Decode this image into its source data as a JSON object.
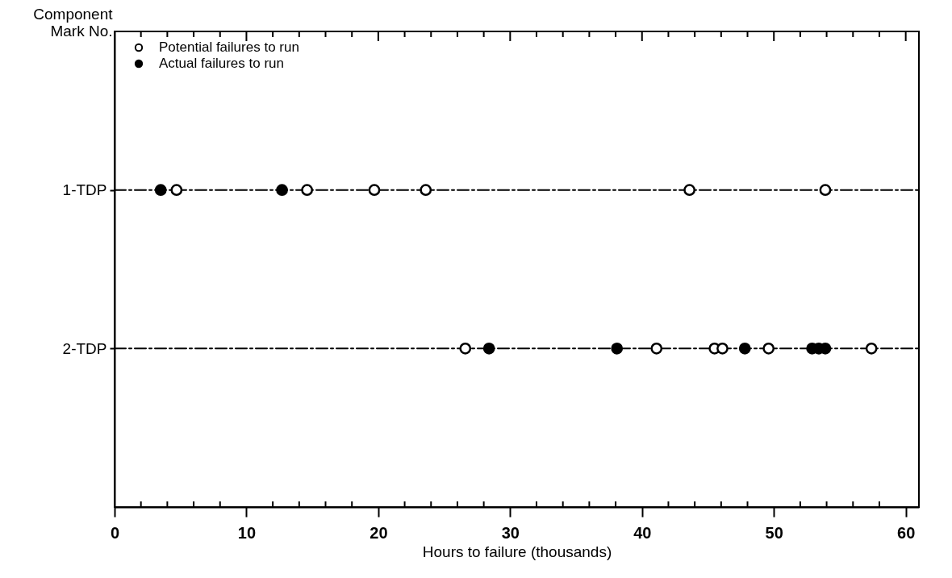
{
  "chart_data": {
    "type": "scatter",
    "xlabel": "Hours to failure (thousands)",
    "ylabel": "Component Mark No.",
    "xlim": [
      0,
      61
    ],
    "xticks": [
      0,
      {
        "value": 2,
        "label": null
      },
      {
        "value": 4,
        "label": null
      },
      {
        "value": 6,
        "label": null
      },
      {
        "value": 8,
        "label": null
      },
      10,
      {
        "value": 12,
        "label": null
      },
      {
        "value": 14,
        "label": null
      },
      {
        "value": 16,
        "label": null
      },
      {
        "value": 18,
        "label": null
      },
      20,
      {
        "value": 22,
        "label": null
      },
      {
        "value": 24,
        "label": null
      },
      {
        "value": 26,
        "label": null
      },
      {
        "value": 28,
        "label": null
      },
      30,
      {
        "value": 32,
        "label": null
      },
      {
        "value": 34,
        "label": null
      },
      {
        "value": 36,
        "label": null
      },
      {
        "value": 38,
        "label": null
      },
      40,
      {
        "value": 42,
        "label": null
      },
      {
        "value": 44,
        "label": null
      },
      {
        "value": 46,
        "label": null
      },
      {
        "value": 48,
        "label": null
      },
      50,
      {
        "value": 52,
        "label": null
      },
      {
        "value": 54,
        "label": null
      },
      {
        "value": 56,
        "label": null
      },
      {
        "value": 58,
        "label": null
      },
      60
    ],
    "ylim": [
      3,
      0
    ],
    "yticks": [
      {
        "value": 1,
        "label": "1-TDP"
      },
      {
        "value": 2,
        "label": "2-TDP"
      }
    ],
    "ref_lines": [
      {
        "axis": "y",
        "value": 1,
        "line_style": "dashed",
        "color": "#000000"
      },
      {
        "axis": "y",
        "value": 2,
        "line_style": "dashed",
        "color": "#000000"
      }
    ],
    "marker": "circle",
    "series": [
      {
        "name": "Potential failures to run",
        "color": "#ffffff",
        "x": [
          4.7,
          14.6,
          19.7,
          23.6,
          43.6,
          53.9,
          26.6,
          41.1,
          45.5,
          46.1,
          49.6,
          57.4
        ],
        "values": [
          1,
          1,
          1,
          1,
          1,
          1,
          2,
          2,
          2,
          2,
          2,
          2
        ]
      },
      {
        "name": "Actual failures to run",
        "color": "#000000",
        "x": [
          3.5,
          12.7,
          28.4,
          38.1,
          47.8,
          52.9,
          53.4,
          53.9
        ],
        "values": [
          1,
          1,
          2,
          2,
          2,
          2,
          2,
          2
        ]
      }
    ],
    "legend": "top left",
    "grid": false
  }
}
